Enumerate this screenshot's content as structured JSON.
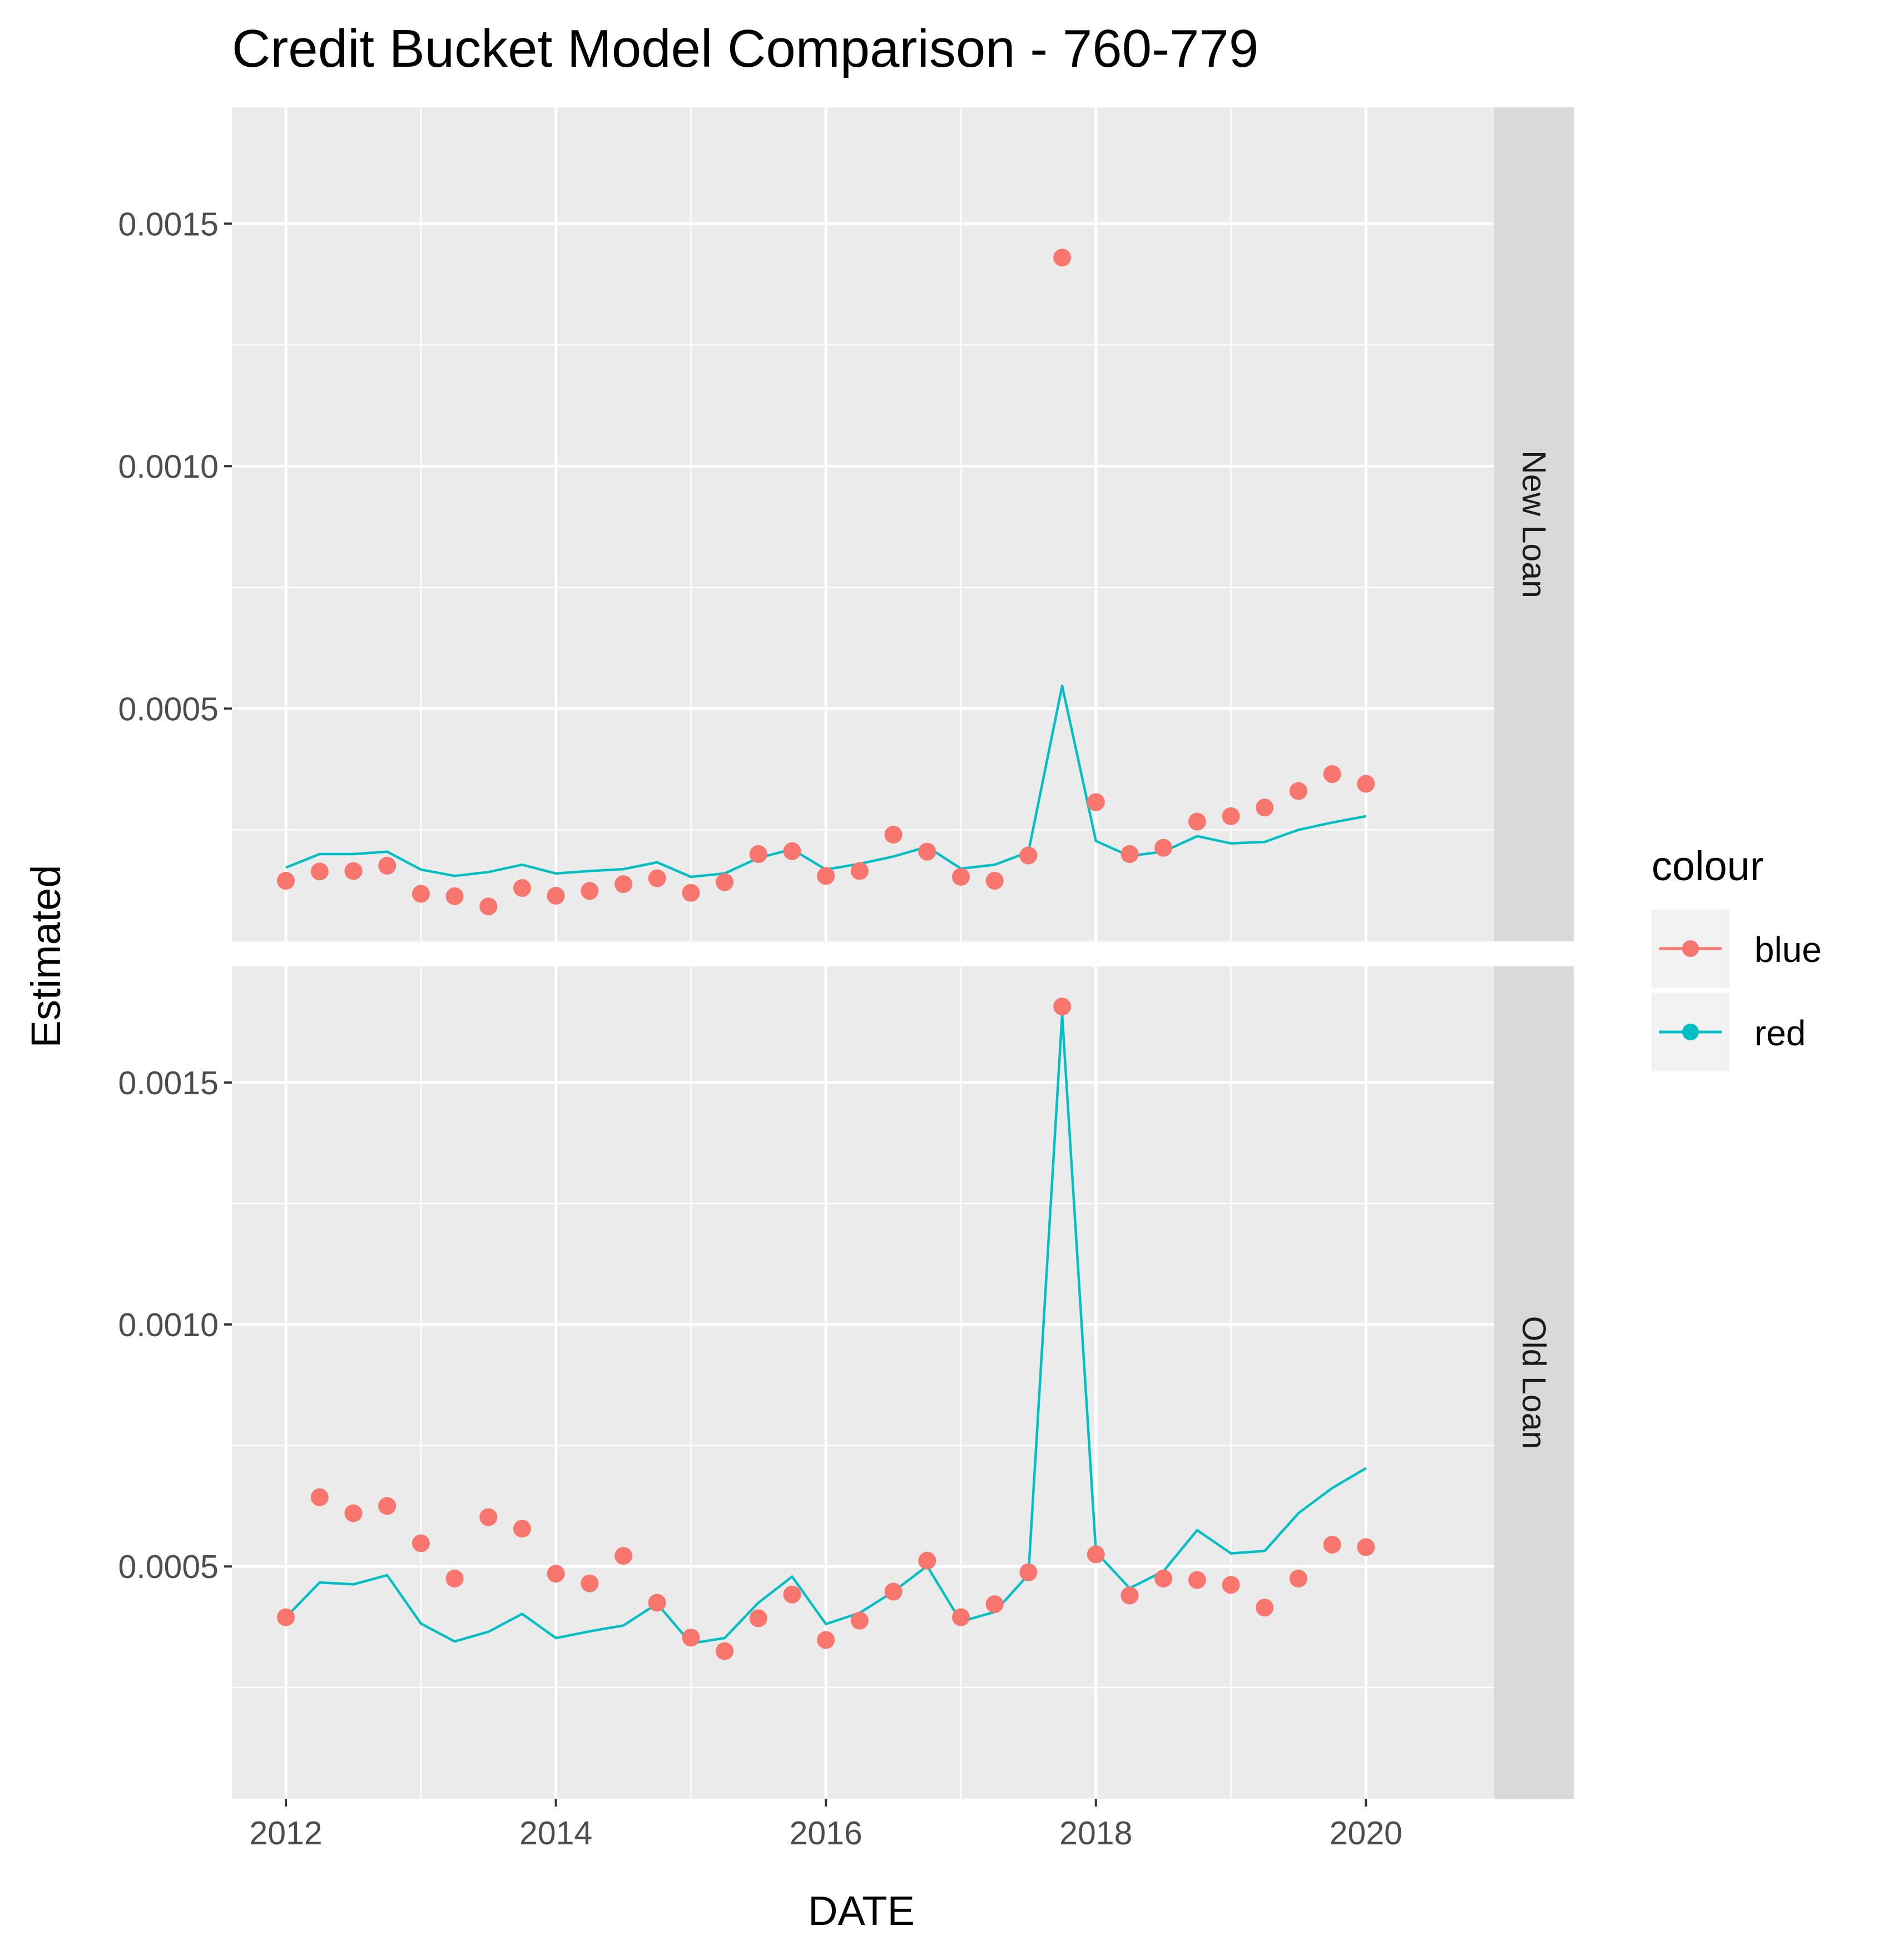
{
  "chart_data": {
    "type": "line",
    "title": "Credit Bucket Model Comparison - 760-779",
    "xlabel": "DATE",
    "ylabel": "Estimated",
    "x_ticks": [
      2012,
      2014,
      2016,
      2018,
      2020
    ],
    "x_range": [
      2011.6,
      2020.95
    ],
    "y_ticks": [
      0.0005,
      0.001,
      0.0015
    ],
    "y_tick_labels": [
      "0.0005",
      "0.0010",
      "0.0015"
    ],
    "y_range": [
      2e-05,
      0.00174
    ],
    "grid": true,
    "legend": {
      "title": "colour",
      "position": "right",
      "entries": [
        {
          "label": "blue",
          "color": "#F8766D"
        },
        {
          "label": "red",
          "color": "#00BFC4"
        }
      ]
    },
    "x": [
      2012.0,
      2012.25,
      2012.5,
      2012.75,
      2013.0,
      2013.25,
      2013.5,
      2013.75,
      2014.0,
      2014.25,
      2014.5,
      2014.75,
      2015.0,
      2015.25,
      2015.5,
      2015.75,
      2016.0,
      2016.25,
      2016.5,
      2016.75,
      2017.0,
      2017.25,
      2017.5,
      2017.75,
      2018.0,
      2018.25,
      2018.5,
      2018.75,
      2019.0,
      2019.25,
      2019.5,
      2019.75,
      2020.0
    ],
    "panels": [
      {
        "label": "New Loan",
        "series": [
          {
            "name": "blue",
            "color": "#F8766D",
            "kind": "points",
            "values": [
              0.000145,
              0.000164,
              0.000165,
              0.000176,
              0.000118,
              0.000113,
              9.2e-05,
              0.00013,
              0.000114,
              0.000124,
              0.000138,
              0.00015,
              0.00012,
              0.000142,
              0.0002,
              0.000206,
              0.000155,
              0.000165,
              0.00024,
              0.000205,
              0.000153,
              0.000145,
              0.000197,
              0.00143,
              0.000307,
              0.0002,
              0.000213,
              0.000267,
              0.000278,
              0.000296,
              0.00033,
              0.000365,
              0.000345
            ]
          },
          {
            "name": "red",
            "color": "#00BFC4",
            "kind": "line",
            "values": [
              0.000172,
              0.0002,
              0.0002,
              0.000205,
              0.000168,
              0.000155,
              0.000163,
              0.000178,
              0.00016,
              0.000165,
              0.000169,
              0.000183,
              0.000153,
              0.00016,
              0.000192,
              0.00021,
              0.000168,
              0.00018,
              0.000195,
              0.000215,
              0.00017,
              0.000178,
              0.000204,
              0.000547,
              0.000227,
              0.000196,
              0.000205,
              0.000237,
              0.000222,
              0.000225,
              0.00025,
              0.000265,
              0.000278
            ]
          }
        ]
      },
      {
        "label": "Old Loan",
        "series": [
          {
            "name": "blue",
            "color": "#F8766D",
            "kind": "points",
            "values": [
              0.000395,
              0.000643,
              0.00061,
              0.000625,
              0.000548,
              0.000475,
              0.000602,
              0.000578,
              0.000485,
              0.000465,
              0.000522,
              0.000425,
              0.000353,
              0.000325,
              0.000393,
              0.000442,
              0.000348,
              0.000388,
              0.000448,
              0.000512,
              0.000395,
              0.000422,
              0.000488,
              0.001657,
              0.000525,
              0.00044,
              0.000475,
              0.000472,
              0.000462,
              0.000415,
              0.000475,
              0.000545,
              0.00054
            ]
          },
          {
            "name": "red",
            "color": "#00BFC4",
            "kind": "line",
            "values": [
              0.000395,
              0.000467,
              0.000463,
              0.000482,
              0.000382,
              0.000345,
              0.000365,
              0.000402,
              0.000352,
              0.000366,
              0.000378,
              0.000423,
              0.000341,
              0.000352,
              0.000425,
              0.000479,
              0.000381,
              0.000404,
              0.000448,
              0.000501,
              0.000386,
              0.000406,
              0.000483,
              0.00164,
              0.00053,
              0.000455,
              0.00049,
              0.000575,
              0.000527,
              0.000532,
              0.00061,
              0.000662,
              0.000703
            ]
          }
        ]
      }
    ]
  }
}
